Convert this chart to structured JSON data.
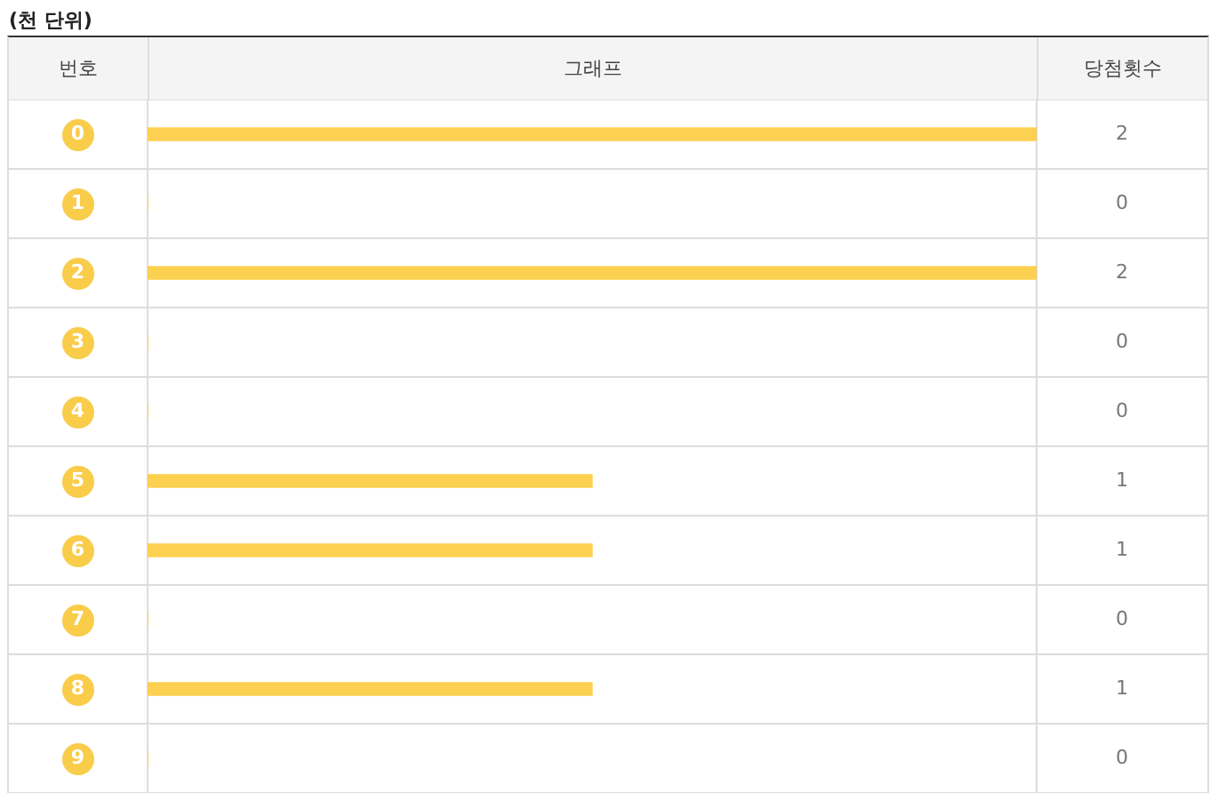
{
  "chart_data": {
    "type": "bar",
    "orientation": "horizontal",
    "title": "(천 단위)",
    "ylabel": "번호",
    "xlabel": "그래프",
    "annotations": [
      "당첨횟수"
    ],
    "categories": [
      "0",
      "1",
      "2",
      "3",
      "4",
      "5",
      "6",
      "7",
      "8",
      "9"
    ],
    "values": [
      2,
      0,
      2,
      0,
      0,
      1,
      1,
      0,
      1,
      0
    ],
    "color": "#fcd050",
    "xlim": [
      0,
      2
    ],
    "tick_labels": "y",
    "grid": "y",
    "data_labels": true
  }
}
